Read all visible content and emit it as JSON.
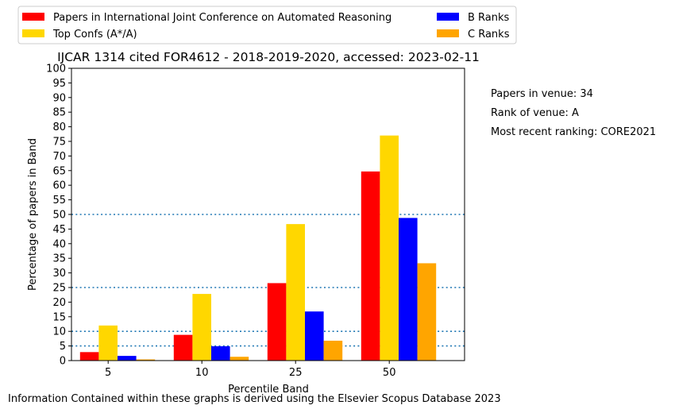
{
  "colors": {
    "ijcar": "#ff0000",
    "top": "#ffd700",
    "b": "#0000ff",
    "c": "#ffa500",
    "refline": "#1f77b4"
  },
  "side_notes": {
    "papers": "Papers in venue: 34",
    "rank": "Rank of venue: A",
    "recent": "Most recent ranking: CORE2021"
  },
  "footer": "Information Contained within these graphs is derived using the Elsevier Scopus Database 2023",
  "chart_data": {
    "type": "bar",
    "title": "IJCAR 1314 cited FOR4612 - 2018-2019-2020, accessed: 2023-02-11",
    "xlabel": "Percentile Band",
    "ylabel": "Percentage of papers in Band",
    "categories": [
      "5",
      "10",
      "25",
      "50"
    ],
    "ylim": [
      0,
      100
    ],
    "yticks": [
      0,
      5,
      10,
      15,
      20,
      25,
      30,
      35,
      40,
      45,
      50,
      55,
      60,
      65,
      70,
      75,
      80,
      85,
      90,
      95,
      100
    ],
    "reference_lines": [
      5,
      10,
      25,
      50
    ],
    "legend_position": "top",
    "series": [
      {
        "name": "Papers in International Joint Conference on Automated Reasoning",
        "color": "#ff0000",
        "values": [
          2.9,
          8.8,
          26.5,
          64.7
        ]
      },
      {
        "name": "Top Confs (A*/A)",
        "color": "#ffd700",
        "values": [
          12.0,
          22.8,
          46.7,
          77.0
        ]
      },
      {
        "name": "B Ranks",
        "color": "#0000ff",
        "values": [
          1.6,
          4.9,
          16.8,
          48.8
        ]
      },
      {
        "name": "C Ranks",
        "color": "#ffa500",
        "values": [
          0.4,
          1.3,
          6.8,
          33.3
        ]
      }
    ]
  }
}
